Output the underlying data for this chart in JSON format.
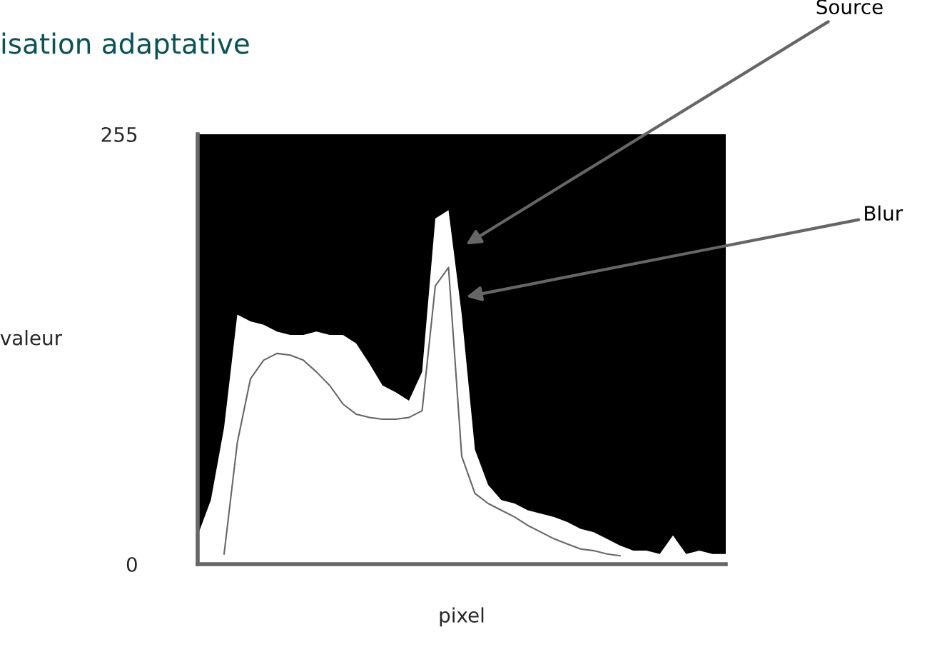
{
  "chart_data": {
    "type": "area",
    "title": "isation adaptative",
    "xlabel": "pixel",
    "ylabel": "valeur",
    "categories": [
      null,
      null,
      null,
      null,
      null,
      null,
      null,
      null,
      null,
      null,
      null,
      null,
      null,
      null,
      null,
      null,
      null,
      null,
      null,
      null,
      null,
      null,
      null,
      null,
      null,
      null,
      null,
      null,
      null,
      null,
      null,
      null,
      null,
      null,
      null,
      null,
      null,
      null,
      null,
      null,
      null
    ],
    "series": [
      {
        "name": "Source",
        "color": "#ffffff",
        "values": [
          17,
          38,
          81,
          148,
          144,
          142,
          138,
          136,
          136,
          138,
          136,
          136,
          131,
          119,
          106,
          102,
          97,
          114,
          205,
          210,
          148,
          68,
          47,
          38,
          36,
          32,
          30,
          28,
          25,
          21,
          19,
          15,
          11,
          8,
          8,
          6,
          17,
          6,
          8,
          6,
          6
        ]
      },
      {
        "name": "Blur",
        "type": "line",
        "color": "#666666",
        "values": [
          null,
          null,
          6,
          72,
          110,
          121,
          125,
          124,
          121,
          114,
          106,
          95,
          89,
          87,
          86,
          86,
          87,
          91,
          165,
          176,
          64,
          42,
          36,
          32,
          28,
          23,
          19,
          15,
          12,
          9,
          8,
          6,
          5,
          null,
          null,
          null,
          null,
          null,
          null,
          null,
          null
        ]
      }
    ],
    "ylim": [
      0,
      255
    ],
    "yticks": [
      0,
      255
    ],
    "tick_labels": "y",
    "grid": false,
    "legend": false
  }
}
